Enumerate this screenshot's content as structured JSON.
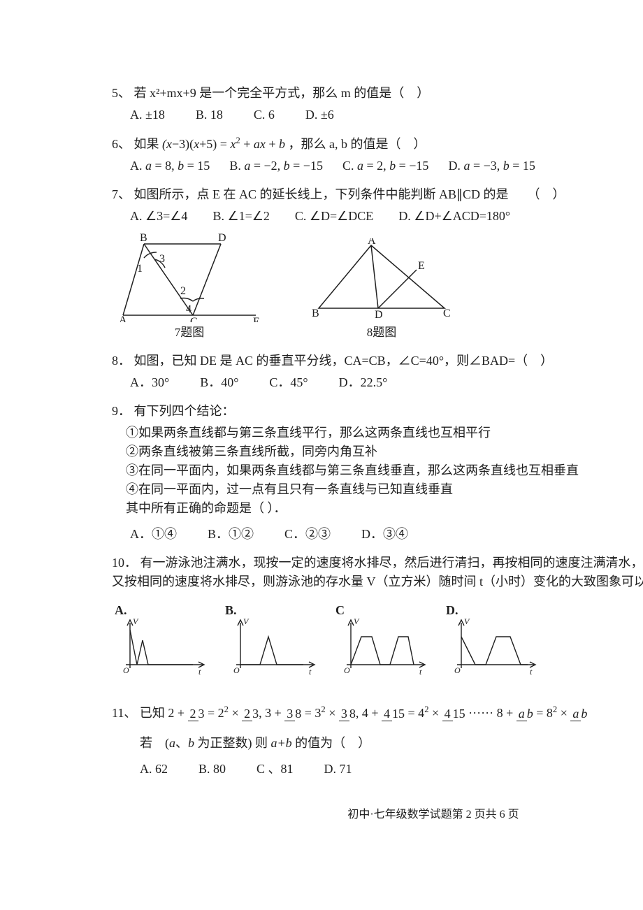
{
  "colors": {
    "ink": "#202020",
    "bg": "#ffffff"
  },
  "q5": {
    "num": "5、",
    "stem": "若 x²+mx+9 是一个完全平方式，那么 m 的值是（　）",
    "opts": [
      "A. ±18",
      "B. 18",
      "C. 6",
      "D. ±6"
    ]
  },
  "q6": {
    "num": "6、",
    "stem_pre": "如果 ",
    "expr": "(x−3)(x+5) = x² + ax + b",
    "stem_post": "，那么 a, b 的值是（　）",
    "opts": [
      "A. a = 8, b = 15",
      "B. a = −2, b = −15",
      "C. a = 2, b = −15",
      "D. a = −3, b = 15"
    ]
  },
  "q7": {
    "num": "7、",
    "stem": "如图所示，点 E 在 AC 的延长线上，下列条件中能判断 AB∥CD 的是　　（　）",
    "opts": [
      "A. ∠3=∠4",
      "B. ∠1=∠2",
      "C. ∠D=∠DCE",
      "D. ∠D+∠ACD=180°"
    ],
    "fig1": {
      "caption": "7题图",
      "labels": {
        "A": "A",
        "B": "B",
        "C": "C",
        "D": "D",
        "E": "E",
        "1": "1",
        "2": "2",
        "3": "3",
        "4": "4"
      },
      "stroke": "#202020",
      "sw": 1.5
    },
    "fig2": {
      "caption": "8题图",
      "labels": {
        "A": "A",
        "B": "B",
        "C": "C",
        "D": "D",
        "E": "E"
      },
      "stroke": "#202020",
      "sw": 1.5
    }
  },
  "q8": {
    "num": "8．",
    "stem": "如图，已知 DE 是 AC 的垂直平分线，CA=CB，∠C=40°，则∠BAD=（　）",
    "opts": [
      "A．30°",
      "B．40°",
      "C．45°",
      "D．22.5°"
    ]
  },
  "q9": {
    "num": "9．",
    "stem": "有下列四个结论：",
    "items": [
      "①如果两条直线都与第三条直线平行，那么这两条直线也互相平行",
      "②两条直线被第三条直线所截，同旁内角互补",
      "③在同一平面内，如果两条直线都与第三条直线垂直，那么这两条直线也互相垂直",
      "④在同一平面内，过一点有且只有一条直线与已知直线垂直"
    ],
    "tail": "其中所有正确的命题是（ ）．",
    "opts": [
      "A．①④",
      "B．①②",
      "C．②③",
      "D．③④"
    ]
  },
  "q10": {
    "num": "10．",
    "stem": "有一游泳池注满水，现按一定的速度将水排尽，然后进行清扫，再按相同的速度注满清水，使用一段时间后，又按相同的速度将水排尽，则游泳池的存水量 V（立方米）随时间 t（小时）变化的大致图象可以是（　）",
    "labels": [
      "A.",
      "B.",
      "C",
      "D."
    ],
    "axis": {
      "x": "t",
      "y": "V",
      "o": "O"
    },
    "style": {
      "stroke": "#202020",
      "sw": 1.4,
      "w": 130,
      "h": 90
    },
    "paths": {
      "A": [
        [
          20,
          20
        ],
        [
          30,
          70
        ],
        [
          38,
          35
        ],
        [
          46,
          70
        ],
        [
          110,
          70
        ]
      ],
      "B": [
        [
          20,
          70
        ],
        [
          48,
          70
        ],
        [
          60,
          30
        ],
        [
          72,
          70
        ],
        [
          110,
          70
        ]
      ],
      "C": [
        [
          20,
          70
        ],
        [
          35,
          30
        ],
        [
          50,
          30
        ],
        [
          62,
          70
        ],
        [
          76,
          70
        ],
        [
          88,
          30
        ],
        [
          102,
          30
        ],
        [
          110,
          70
        ]
      ],
      "D": [
        [
          20,
          30
        ],
        [
          40,
          70
        ],
        [
          55,
          70
        ],
        [
          70,
          30
        ],
        [
          90,
          30
        ],
        [
          105,
          70
        ],
        [
          115,
          70
        ]
      ]
    }
  },
  "q11": {
    "num": "11、",
    "lead": "已知 ",
    "seq_text": "2 + 2/3 = 2² × 2/3, 3 + 3/8 = 3² × 3/8, 4 + 4/15 = 4² × 4/15 ······ 8 + a/b = 8² × a/b",
    "cond": "若　(a、b 为正整数) 则 a+b 的值为（　）",
    "opts": [
      "A. 62",
      "B. 80",
      "C 、81",
      "D. 71"
    ]
  },
  "footer": "初中·七年级数学试题第 2 页共 6 页"
}
